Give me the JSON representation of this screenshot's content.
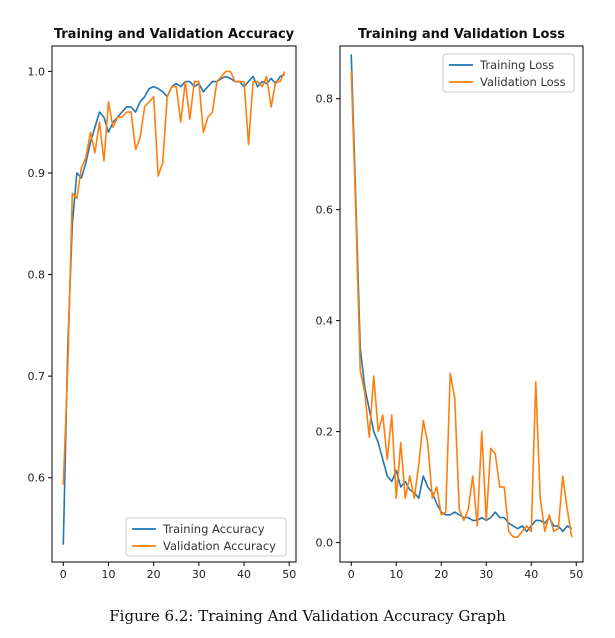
{
  "caption": "Figure 6.2: Training And Validation Accuracy Graph",
  "colors": {
    "train": "#1f77b4",
    "val": "#ff7f0e"
  },
  "chart_data": [
    {
      "type": "line",
      "title": "Training and Validation Accuracy",
      "xlabel": "",
      "ylabel": "",
      "xlim": [
        -2.5,
        51.5
      ],
      "ylim": [
        0.517,
        1.025
      ],
      "xticks": [
        0,
        10,
        20,
        30,
        40,
        50
      ],
      "yticks": [
        0.6,
        0.7,
        0.8,
        0.9,
        1.0
      ],
      "ytick_labels": [
        "0.6",
        "0.7",
        "0.8",
        "0.9",
        "1.0"
      ],
      "legend_position": "lower-right",
      "grid": false,
      "series": [
        {
          "name": "Training Accuracy",
          "color": "#1f77b4",
          "values": [
            0.534,
            0.73,
            0.85,
            0.9,
            0.895,
            0.91,
            0.93,
            0.945,
            0.96,
            0.955,
            0.94,
            0.95,
            0.955,
            0.96,
            0.965,
            0.965,
            0.96,
            0.97,
            0.975,
            0.983,
            0.985,
            0.983,
            0.98,
            0.975,
            0.985,
            0.988,
            0.985,
            0.99,
            0.99,
            0.985,
            0.988,
            0.98,
            0.985,
            0.99,
            0.99,
            0.993,
            0.995,
            0.993,
            0.99,
            0.99,
            0.985,
            0.99,
            0.995,
            0.985,
            0.99,
            0.988,
            0.993,
            0.988,
            0.995,
            0.997
          ]
        },
        {
          "name": "Validation Accuracy",
          "color": "#ff7f0e",
          "values": [
            0.593,
            0.71,
            0.88,
            0.875,
            0.905,
            0.915,
            0.94,
            0.92,
            0.95,
            0.912,
            0.97,
            0.945,
            0.955,
            0.955,
            0.96,
            0.96,
            0.923,
            0.935,
            0.965,
            0.97,
            0.975,
            0.897,
            0.91,
            0.975,
            0.985,
            0.985,
            0.95,
            0.99,
            0.953,
            0.99,
            0.99,
            0.94,
            0.955,
            0.96,
            0.99,
            0.995,
            1.0,
            1.0,
            0.99,
            0.99,
            0.99,
            0.928,
            0.99,
            0.99,
            0.985,
            0.995,
            0.965,
            0.99,
            0.99,
            1.0
          ]
        }
      ]
    },
    {
      "type": "line",
      "title": "Training and Validation Loss",
      "xlabel": "",
      "ylabel": "",
      "xlim": [
        -2.5,
        51.5
      ],
      "ylim": [
        -0.035,
        0.895
      ],
      "xticks": [
        0,
        10,
        20,
        30,
        40,
        50
      ],
      "yticks": [
        0.0,
        0.2,
        0.4,
        0.6,
        0.8
      ],
      "ytick_labels": [
        "0.0",
        "0.2",
        "0.4",
        "0.6",
        "0.8"
      ],
      "legend_position": "upper-right",
      "grid": false,
      "series": [
        {
          "name": "Training Loss",
          "color": "#1f77b4",
          "values": [
            0.88,
            0.62,
            0.35,
            0.28,
            0.24,
            0.2,
            0.18,
            0.15,
            0.12,
            0.11,
            0.13,
            0.1,
            0.11,
            0.095,
            0.09,
            0.08,
            0.12,
            0.1,
            0.09,
            0.07,
            0.055,
            0.05,
            0.05,
            0.055,
            0.05,
            0.045,
            0.045,
            0.04,
            0.04,
            0.045,
            0.04,
            0.045,
            0.055,
            0.045,
            0.045,
            0.035,
            0.03,
            0.025,
            0.03,
            0.02,
            0.03,
            0.04,
            0.04,
            0.035,
            0.045,
            0.03,
            0.03,
            0.02,
            0.03,
            0.025
          ]
        },
        {
          "name": "Validation Loss",
          "color": "#ff7f0e",
          "values": [
            0.85,
            0.6,
            0.31,
            0.27,
            0.19,
            0.3,
            0.2,
            0.23,
            0.15,
            0.23,
            0.08,
            0.18,
            0.08,
            0.12,
            0.08,
            0.14,
            0.22,
            0.18,
            0.08,
            0.1,
            0.05,
            0.055,
            0.305,
            0.26,
            0.06,
            0.04,
            0.06,
            0.12,
            0.03,
            0.2,
            0.04,
            0.17,
            0.16,
            0.1,
            0.1,
            0.02,
            0.01,
            0.01,
            0.02,
            0.03,
            0.02,
            0.29,
            0.08,
            0.02,
            0.05,
            0.02,
            0.025,
            0.12,
            0.06,
            0.01
          ]
        }
      ]
    }
  ]
}
